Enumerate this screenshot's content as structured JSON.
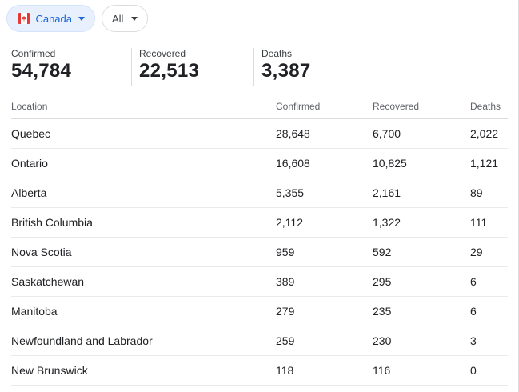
{
  "filters": {
    "country": "Canada",
    "scope": "All"
  },
  "summary": {
    "confirmed": {
      "label": "Confirmed",
      "value": "54,784"
    },
    "recovered": {
      "label": "Recovered",
      "value": "22,513"
    },
    "deaths": {
      "label": "Deaths",
      "value": "3,387"
    }
  },
  "table": {
    "headers": [
      "Location",
      "Confirmed",
      "Recovered",
      "Deaths"
    ],
    "rows": [
      [
        "Quebec",
        "28,648",
        "6,700",
        "2,022"
      ],
      [
        "Ontario",
        "16,608",
        "10,825",
        "1,121"
      ],
      [
        "Alberta",
        "5,355",
        "2,161",
        "89"
      ],
      [
        "British Columbia",
        "2,112",
        "1,322",
        "111"
      ],
      [
        "Nova Scotia",
        "959",
        "592",
        "29"
      ],
      [
        "Saskatchewan",
        "389",
        "295",
        "6"
      ],
      [
        "Manitoba",
        "279",
        "235",
        "6"
      ],
      [
        "Newfoundland and Labrador",
        "259",
        "230",
        "3"
      ],
      [
        "New Brunswick",
        "118",
        "116",
        "0"
      ]
    ]
  },
  "colors": {
    "accent": "#1967d2",
    "chip_bg": "#e8f0fe",
    "flag_red": "#e53935",
    "divider": "#dadce0"
  },
  "icons": {
    "country_flag": "canada-flag-icon",
    "dropdown": "caret-down-icon"
  }
}
